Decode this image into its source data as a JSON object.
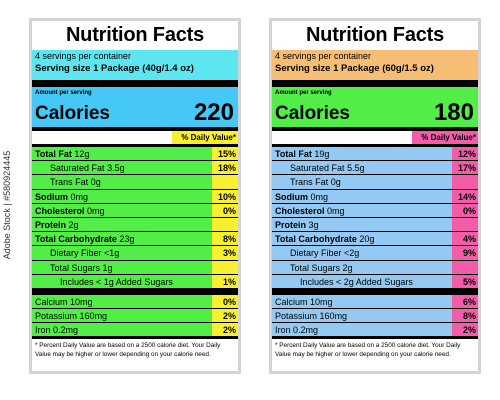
{
  "watermark": "Adobe Stock | #580924445",
  "labels": [
    {
      "title": "Nutrition Facts",
      "servings_per_container": "4 servings per container",
      "serving_size": "Serving size 1 Package (40g/1.4 oz)",
      "amount_per_serving": "Amount per serving",
      "calories_label": "Calories",
      "calories_value": "220",
      "dv_header": "% Daily Value*",
      "colors": {
        "serving_bg": "#5ee6f0",
        "calories_bg": "#45c8f5",
        "rows_bg": "#52ed46",
        "dv_bg": "#f7f02e"
      },
      "nutrients": [
        {
          "name": "Total Fat",
          "amount": "12g",
          "dv": "15%",
          "bold": true,
          "indent": 0
        },
        {
          "name": "Saturated Fat",
          "amount": "3.5g",
          "dv": "18%",
          "bold": false,
          "indent": 1
        },
        {
          "name": "Trans Fat",
          "amount": "0g",
          "dv": "",
          "bold": false,
          "indent": 1
        },
        {
          "name": "Sodium",
          "amount": "0mg",
          "dv": "10%",
          "bold": true,
          "indent": 0
        },
        {
          "name": "Cholesterol",
          "amount": "0mg",
          "dv": "0%",
          "bold": true,
          "indent": 0
        },
        {
          "name": "Protein",
          "amount": "2g",
          "dv": "",
          "bold": true,
          "indent": 0
        },
        {
          "name": "Total Carbohydrate",
          "amount": "23g",
          "dv": "8%",
          "bold": true,
          "indent": 0
        },
        {
          "name": "Dietary Fiber",
          "amount": "<1g",
          "dv": "3%",
          "bold": false,
          "indent": 1
        },
        {
          "name": "Total Sugars",
          "amount": "1g",
          "dv": "",
          "bold": false,
          "indent": 1
        },
        {
          "name": "Includes < 1g Added Sugars",
          "amount": "",
          "dv": "1%",
          "bold": false,
          "indent": 2
        }
      ],
      "minerals": [
        {
          "name": "Calcium",
          "amount": "10mg",
          "dv": "0%"
        },
        {
          "name": "Potassium",
          "amount": "160mg",
          "dv": "2%"
        },
        {
          "name": "Iron",
          "amount": "0.2mg",
          "dv": "2%"
        }
      ],
      "footnote": "* Percent Daily Value are based on a 2500 calorie diet. Your Daily Value may be higher or lower depending on your calorie need."
    },
    {
      "title": "Nutrition Facts",
      "servings_per_container": "4 servings per container",
      "serving_size": "Serving size 1 Package (60g/1.5 oz)",
      "amount_per_serving": "Amount per serving",
      "calories_label": "Calories",
      "calories_value": "180",
      "dv_header": "% Daily Value*",
      "colors": {
        "serving_bg": "#f5be74",
        "calories_bg": "#52ed46",
        "rows_bg": "#93c9f2",
        "dv_bg": "#f25ca8"
      },
      "nutrients": [
        {
          "name": "Total Fat",
          "amount": "19g",
          "dv": "12%",
          "bold": true,
          "indent": 0
        },
        {
          "name": "Saturated Fat",
          "amount": "5.5g",
          "dv": "17%",
          "bold": false,
          "indent": 1
        },
        {
          "name": "Trans Fat",
          "amount": "0g",
          "dv": "",
          "bold": false,
          "indent": 1
        },
        {
          "name": "Sodium",
          "amount": "0mg",
          "dv": "14%",
          "bold": true,
          "indent": 0
        },
        {
          "name": "Cholesterol",
          "amount": "0mg",
          "dv": "0%",
          "bold": true,
          "indent": 0
        },
        {
          "name": "Protein",
          "amount": "3g",
          "dv": "",
          "bold": true,
          "indent": 0
        },
        {
          "name": "Total Carbohydrate",
          "amount": "20g",
          "dv": "4%",
          "bold": true,
          "indent": 0
        },
        {
          "name": "Dietary Fiber",
          "amount": "<2g",
          "dv": "9%",
          "bold": false,
          "indent": 1
        },
        {
          "name": "Total Sugars",
          "amount": "2g",
          "dv": "",
          "bold": false,
          "indent": 1
        },
        {
          "name": "Includes < 2g Added Sugars",
          "amount": "",
          "dv": "5%",
          "bold": false,
          "indent": 2
        }
      ],
      "minerals": [
        {
          "name": "Calcium",
          "amount": "10mg",
          "dv": "6%"
        },
        {
          "name": "Potassium",
          "amount": "160mg",
          "dv": "8%"
        },
        {
          "name": "Iron",
          "amount": "0.2mg",
          "dv": "2%"
        }
      ],
      "footnote": "* Percent Daily Value are based on a 2500 calorie diet. Your Daily Value may be higher or lower depending on your calorie need."
    }
  ]
}
